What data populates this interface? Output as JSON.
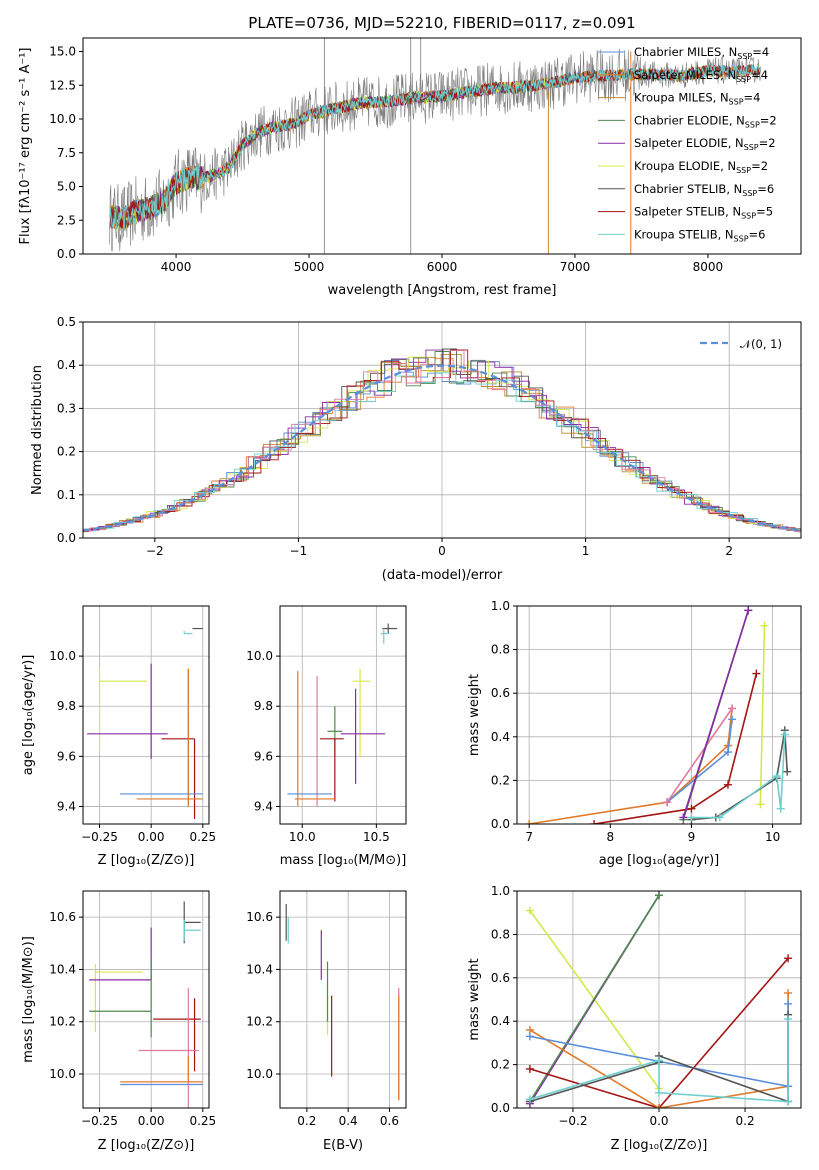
{
  "colors": {
    "Chabrier MILES": "#5b8fd9",
    "Salpeter MILES": "#e07b2b",
    "Kroupa MILES": "#c08a2a",
    "Chabrier ELODIE": "#4f8a4f",
    "Salpeter ELODIE": "#8a2aa8",
    "Kroupa ELODIE": "#d4e84a",
    "Chabrier STELIB": "#555555",
    "Salpeter STELIB": "#a51414",
    "Kroupa STELIB": "#6fcfcf",
    "pink": "#e07aa0",
    "normal": "#5b8fd9"
  },
  "chart_data": [
    {
      "id": "spectrum",
      "type": "line",
      "title": "PLATE=0736, MJD=52210, FIBERID=0117, z=0.091",
      "xlabel": "wavelength [Angstrom, rest frame]",
      "ylabel": "Flux [fλ10⁻¹⁷ erg cm⁻² s⁻¹ A⁻¹]",
      "xlim": [
        3300,
        8700
      ],
      "ylim": [
        0,
        16
      ],
      "xticks": [
        "4000",
        "5000",
        "6000",
        "7000",
        "8000"
      ],
      "yticks": [
        "0.0",
        "2.5",
        "5.0",
        "7.5",
        "10.0",
        "12.5",
        "15.0"
      ],
      "legend_position": "top-right",
      "legend": [
        {
          "series": "Chabrier MILES",
          "text": "Chabrier MILES, N",
          "sub": "SSP",
          "n": "=4"
        },
        {
          "series": "Salpeter MILES",
          "text": "Salpeter MILES, N",
          "sub": "SSP",
          "n": "=4"
        },
        {
          "series": "Kroupa MILES",
          "text": "Kroupa MILES, N",
          "sub": "SSP",
          "n": "=4"
        },
        {
          "series": "Chabrier ELODIE",
          "text": "Chabrier ELODIE, N",
          "sub": "SSP",
          "n": "=2"
        },
        {
          "series": "Salpeter ELODIE",
          "text": "Salpeter ELODIE, N",
          "sub": "SSP",
          "n": "=2"
        },
        {
          "series": "Kroupa ELODIE",
          "text": "Kroupa ELODIE, N",
          "sub": "SSP",
          "n": "=2"
        },
        {
          "series": "Chabrier STELIB",
          "text": "Chabrier STELIB, N",
          "sub": "SSP",
          "n": "=6"
        },
        {
          "series": "Salpeter STELIB",
          "text": "Salpeter STELIB, N",
          "sub": "SSP",
          "n": "=5"
        },
        {
          "series": "Kroupa STELIB",
          "text": "Kroupa STELIB, N",
          "sub": "SSP",
          "n": "=6"
        }
      ],
      "model_curve": {
        "x": [
          3500,
          3600,
          3700,
          3800,
          3900,
          4000,
          4100,
          4200,
          4300,
          4400,
          4500,
          4600,
          4700,
          4800,
          4900,
          5000,
          5200,
          5400,
          5600,
          5800,
          6000,
          6200,
          6400,
          6600,
          6800,
          7000,
          7200,
          7400,
          7600,
          7800,
          8000,
          8200,
          8400
        ],
        "y": [
          2.8,
          2.6,
          3.2,
          3.4,
          3.9,
          5.2,
          5.7,
          5.6,
          5.9,
          6.4,
          8.1,
          8.9,
          9.3,
          9.5,
          9.7,
          10.3,
          10.8,
          11.2,
          11.3,
          11.6,
          11.7,
          12.0,
          12.3,
          12.4,
          12.6,
          13.1,
          13.2,
          13.3,
          13.3,
          13.2,
          13.6,
          13.5,
          13.7
        ]
      }
    },
    {
      "id": "residuals",
      "type": "step",
      "xlabel": "(data-model)/error",
      "ylabel": "Normed distribution",
      "xlim": [
        -2.5,
        2.5
      ],
      "ylim": [
        0,
        0.5
      ],
      "xticks": [
        "−2",
        "−1",
        "0",
        "1",
        "2"
      ],
      "xtick_values": [
        -2,
        -1,
        0,
        1,
        2
      ],
      "yticks": [
        "0.0",
        "0.1",
        "0.2",
        "0.3",
        "0.4",
        "0.5"
      ],
      "legend": "𝒩(0, 1)",
      "legend_position": "top-right"
    },
    {
      "id": "age-vs-Z",
      "type": "errorbar",
      "xlabel": "Z [log₁₀(Z/Z⊙)]",
      "ylabel": "age  [log₁₀(age/yr)]",
      "xlim": [
        -0.33,
        0.28
      ],
      "ylim": [
        9.33,
        10.2
      ],
      "xticks": [
        "−0.25",
        "0.00",
        "0.25"
      ],
      "xtick_values": [
        -0.25,
        0,
        0.25
      ],
      "yticks": [
        "9.4",
        "9.6",
        "9.8",
        "10.0"
      ],
      "ytick_values": [
        9.4,
        9.6,
        9.8,
        10.0
      ],
      "points": [
        {
          "s": "Chabrier STELIB",
          "x": 0.2,
          "y": 10.11,
          "xerr": [
            0.0,
            0.05
          ],
          "yerr": [
            0.0,
            0.0
          ]
        },
        {
          "s": "Kroupa STELIB",
          "x": 0.16,
          "y": 10.09,
          "xerr": [
            0.0,
            0.04
          ],
          "yerr": [
            0.0,
            0.01
          ]
        },
        {
          "s": "Kroupa ELODIE",
          "x": -0.25,
          "y": 9.9,
          "xerr": [
            0.0,
            0.23
          ],
          "yerr": [
            0.28,
            0.05
          ]
        },
        {
          "s": "Salpeter ELODIE",
          "x": 0.0,
          "y": 9.69,
          "xerr": [
            0.31,
            0.08
          ],
          "yerr": [
            0.1,
            0.28
          ]
        },
        {
          "s": "Salpeter STELIB",
          "x": 0.21,
          "y": 9.67,
          "xerr": [
            0.16,
            0.0
          ],
          "yerr": [
            0.32,
            0.0
          ]
        },
        {
          "s": "Chabrier MILES",
          "x": 0.18,
          "y": 9.45,
          "xerr": [
            0.33,
            0.07
          ],
          "yerr": [
            0.05,
            0.5
          ]
        },
        {
          "s": "Salpeter MILES",
          "x": 0.18,
          "y": 9.43,
          "xerr": [
            0.25,
            0.07
          ],
          "yerr": [
            0.03,
            0.52
          ]
        }
      ]
    },
    {
      "id": "age-vs-mass",
      "type": "errorbar",
      "xlabel": "mass [log₁₀(M/M⊙)]",
      "xlim": [
        9.85,
        10.7
      ],
      "ylim": [
        9.33,
        10.2
      ],
      "xticks": [
        "10.0",
        "10.5"
      ],
      "xtick_values": [
        10.0,
        10.5
      ],
      "yticks": [
        "9.4",
        "9.6",
        "9.8",
        "10.0"
      ],
      "ytick_values": [
        9.4,
        9.6,
        9.8,
        10.0
      ],
      "points": [
        {
          "s": "Chabrier STELIB",
          "x": 10.58,
          "y": 10.11,
          "xerr": [
            0.04,
            0.06
          ],
          "yerr": [
            0.02,
            0.02
          ]
        },
        {
          "s": "Kroupa STELIB",
          "x": 10.55,
          "y": 10.09,
          "xerr": [
            0.02,
            0.04
          ],
          "yerr": [
            0.04,
            0.02
          ]
        },
        {
          "s": "Kroupa ELODIE",
          "x": 10.39,
          "y": 9.9,
          "xerr": [
            0.05,
            0.07
          ],
          "yerr": [
            0.3,
            0.05
          ]
        },
        {
          "s": "Salpeter ELODIE",
          "x": 10.36,
          "y": 9.69,
          "xerr": [
            0.1,
            0.2
          ],
          "yerr": [
            0.2,
            0.18
          ]
        },
        {
          "s": "Chabrier ELODIE",
          "x": 10.22,
          "y": 9.7,
          "xerr": [
            0.05,
            0.05
          ],
          "yerr": [
            0.1,
            0.1
          ]
        },
        {
          "s": "Salpeter STELIB",
          "x": 10.22,
          "y": 9.67,
          "xerr": [
            0.1,
            0.06
          ],
          "yerr": [
            0.25,
            0.0
          ]
        },
        {
          "s": "pink",
          "x": 10.1,
          "y": 9.7,
          "xerr": [
            0.0,
            0.0
          ],
          "yerr": [
            0.3,
            0.22
          ]
        },
        {
          "s": "Salpeter MILES",
          "x": 9.97,
          "y": 9.6,
          "xerr": [
            0.0,
            0.0
          ],
          "yerr": [
            0.2,
            0.34
          ]
        },
        {
          "s": "Chabrier MILES",
          "x": 10.1,
          "y": 9.45,
          "xerr": [
            0.2,
            0.1
          ],
          "yerr": [
            0.0,
            0.0
          ]
        },
        {
          "s": "Salpeter MILES",
          "x": 10.1,
          "y": 9.43,
          "xerr": [
            0.15,
            0.12
          ],
          "yerr": [
            0.0,
            0.0
          ]
        }
      ]
    },
    {
      "id": "weight-vs-age",
      "type": "line",
      "xlabel": "age  [log₁₀(age/yr)]",
      "ylabel": "mass weight",
      "xlim": [
        6.85,
        10.35
      ],
      "ylim": [
        0,
        1.0
      ],
      "xticks": [
        "7",
        "8",
        "9",
        "10"
      ],
      "xtick_values": [
        7,
        8,
        9,
        10
      ],
      "yticks": [
        "0.0",
        "0.2",
        "0.4",
        "0.6",
        "0.8",
        "1.0"
      ],
      "series": [
        {
          "name": "Salpeter MILES",
          "x": [
            7.0,
            8.7,
            9.45,
            9.5
          ],
          "y": [
            0.0,
            0.1,
            0.36,
            0.53
          ]
        },
        {
          "name": "Chabrier MILES",
          "x": [
            8.7,
            9.45,
            9.5
          ],
          "y": [
            0.1,
            0.33,
            0.48
          ]
        },
        {
          "name": "pink",
          "x": [
            8.7,
            9.5
          ],
          "y": [
            0.1,
            0.53
          ]
        },
        {
          "name": "Salpeter STELIB",
          "x": [
            7.8,
            9.0,
            9.45,
            9.8
          ],
          "y": [
            0.0,
            0.07,
            0.18,
            0.69
          ]
        },
        {
          "name": "Chabrier ELODIE",
          "x": [
            8.9,
            9.7
          ],
          "y": [
            0.02,
            0.98
          ]
        },
        {
          "name": "Salpeter ELODIE",
          "x": [
            8.9,
            9.7
          ],
          "y": [
            0.03,
            0.98
          ]
        },
        {
          "name": "Kroupa ELODIE",
          "x": [
            9.85,
            9.9
          ],
          "y": [
            0.09,
            0.91
          ]
        },
        {
          "name": "Chabrier STELIB",
          "x": [
            9.0,
            9.3,
            10.05,
            10.15,
            10.18
          ],
          "y": [
            0.02,
            0.03,
            0.21,
            0.43,
            0.24
          ]
        },
        {
          "name": "Kroupa STELIB",
          "x": [
            9.0,
            9.35,
            10.05,
            10.1,
            10.15
          ],
          "y": [
            0.03,
            0.03,
            0.22,
            0.07,
            0.41
          ]
        }
      ]
    },
    {
      "id": "mass-vs-Z",
      "type": "errorbar",
      "xlabel": "Z [log₁₀(Z/Z⊙)]",
      "ylabel": "mass [log₁₀(M/M⊙)]",
      "xlim": [
        -0.33,
        0.28
      ],
      "ylim": [
        9.87,
        10.7
      ],
      "xticks": [
        "−0.25",
        "0.00",
        "0.25"
      ],
      "xtick_values": [
        -0.25,
        0,
        0.25
      ],
      "yticks": [
        "10.0",
        "10.2",
        "10.4",
        "10.6"
      ],
      "ytick_values": [
        10.0,
        10.2,
        10.4,
        10.6
      ],
      "points": [
        {
          "s": "Chabrier STELIB",
          "x": 0.16,
          "y": 10.58,
          "xerr": [
            0.0,
            0.08
          ],
          "yerr": [
            0.08,
            0.08
          ]
        },
        {
          "s": "Kroupa STELIB",
          "x": 0.16,
          "y": 10.55,
          "xerr": [
            0.0,
            0.08
          ],
          "yerr": [
            0.04,
            0.04
          ]
        },
        {
          "s": "Kroupa ELODIE",
          "x": -0.27,
          "y": 10.39,
          "xerr": [
            0.0,
            0.23
          ],
          "yerr": [
            0.23,
            0.03
          ]
        },
        {
          "s": "Salpeter ELODIE",
          "x": 0.0,
          "y": 10.36,
          "xerr": [
            0.3,
            0.0
          ],
          "yerr": [
            0.0,
            0.2
          ]
        },
        {
          "s": "Chabrier ELODIE",
          "x": 0.0,
          "y": 10.24,
          "xerr": [
            0.3,
            0.0
          ],
          "yerr": [
            0.1,
            0.2
          ]
        },
        {
          "s": "Salpeter STELIB",
          "x": 0.21,
          "y": 10.21,
          "xerr": [
            0.2,
            0.03
          ],
          "yerr": [
            0.2,
            0.08
          ]
        },
        {
          "s": "pink",
          "x": 0.18,
          "y": 10.09,
          "xerr": [
            0.24,
            0.05
          ],
          "yerr": [
            0.24,
            0.24
          ]
        },
        {
          "s": "Salpeter MILES",
          "x": 0.18,
          "y": 9.97,
          "xerr": [
            0.33,
            0.07
          ],
          "yerr": [
            0.0,
            0.1
          ]
        },
        {
          "s": "Chabrier MILES",
          "x": 0.18,
          "y": 9.96,
          "xerr": [
            0.33,
            0.07
          ],
          "yerr": [
            0.0,
            0.0
          ]
        }
      ]
    },
    {
      "id": "mass-vs-EBV",
      "type": "errorbar",
      "xlabel": "E(B-V)",
      "xlim": [
        0.07,
        0.68
      ],
      "ylim": [
        9.87,
        10.7
      ],
      "xticks": [
        "0.2",
        "0.4",
        "0.6"
      ],
      "xtick_values": [
        0.2,
        0.4,
        0.6
      ],
      "yticks": [
        "10.0",
        "10.2",
        "10.4",
        "10.6"
      ],
      "ytick_values": [
        10.0,
        10.2,
        10.4,
        10.6
      ],
      "points": [
        {
          "s": "Chabrier STELIB",
          "x": 0.1,
          "y": 10.58,
          "xerr": [
            0.0,
            0.0
          ],
          "yerr": [
            0.07,
            0.07
          ]
        },
        {
          "s": "Kroupa STELIB",
          "x": 0.11,
          "y": 10.55,
          "xerr": [
            0.0,
            0.0
          ],
          "yerr": [
            0.05,
            0.05
          ]
        },
        {
          "s": "Salpeter ELODIE",
          "x": 0.27,
          "y": 10.45,
          "xerr": [
            0.0,
            0.0
          ],
          "yerr": [
            0.09,
            0.1
          ]
        },
        {
          "s": "Kroupa ELODIE",
          "x": 0.3,
          "y": 10.3,
          "xerr": [
            0.0,
            0.0
          ],
          "yerr": [
            0.15,
            0.0
          ]
        },
        {
          "s": "Chabrier ELODIE",
          "x": 0.3,
          "y": 10.3,
          "xerr": [
            0.0,
            0.0
          ],
          "yerr": [
            0.1,
            0.13
          ]
        },
        {
          "s": "Salpeter STELIB",
          "x": 0.32,
          "y": 10.14,
          "xerr": [
            0.0,
            0.0
          ],
          "yerr": [
            0.15,
            0.16
          ]
        },
        {
          "s": "pink",
          "x": 0.645,
          "y": 10.2,
          "xerr": [
            0.0,
            0.0
          ],
          "yerr": [
            0.3,
            0.13
          ]
        },
        {
          "s": "Salpeter MILES",
          "x": 0.645,
          "y": 10.1,
          "xerr": [
            0.0,
            0.0
          ],
          "yerr": [
            0.2,
            0.2
          ]
        }
      ]
    },
    {
      "id": "weight-vs-Z",
      "type": "line",
      "xlabel": "Z [log₁₀(Z/Z⊙)]",
      "ylabel": "mass weight",
      "xlim": [
        -0.33,
        0.33
      ],
      "ylim": [
        0,
        1.0
      ],
      "xticks": [
        "−0.2",
        "0.0",
        "0.2"
      ],
      "xtick_values": [
        -0.2,
        0,
        0.2
      ],
      "yticks": [
        "0.0",
        "0.2",
        "0.4",
        "0.6",
        "0.8",
        "1.0"
      ],
      "series": [
        {
          "name": "Kroupa ELODIE",
          "x": [
            -0.3,
            0.0
          ],
          "y": [
            0.91,
            0.09
          ]
        },
        {
          "name": "Salpeter ELODIE",
          "x": [
            -0.3,
            0.0
          ],
          "y": [
            0.02,
            0.98
          ]
        },
        {
          "name": "Chabrier ELODIE",
          "x": [
            -0.3,
            0.0
          ],
          "y": [
            0.03,
            0.98
          ]
        },
        {
          "name": "Salpeter STELIB",
          "x": [
            -0.3,
            0.0,
            0.3
          ],
          "y": [
            0.18,
            0.0,
            0.69
          ]
        },
        {
          "name": "Salpeter MILES",
          "x": [
            -0.3,
            0.0,
            0.3,
            0.3
          ],
          "y": [
            0.36,
            0.0,
            0.1,
            0.53
          ]
        },
        {
          "name": "Chabrier MILES",
          "x": [
            -0.3,
            0.3,
            0.3
          ],
          "y": [
            0.33,
            0.1,
            0.48
          ]
        },
        {
          "name": "Chabrier STELIB",
          "x": [
            -0.3,
            0.0,
            0.0,
            0.3,
            0.3
          ],
          "y": [
            0.03,
            0.21,
            0.24,
            0.03,
            0.43
          ]
        },
        {
          "name": "Kroupa STELIB",
          "x": [
            -0.3,
            0.0,
            0.0,
            0.3,
            0.3
          ],
          "y": [
            0.04,
            0.22,
            0.07,
            0.03,
            0.41
          ]
        }
      ]
    }
  ]
}
